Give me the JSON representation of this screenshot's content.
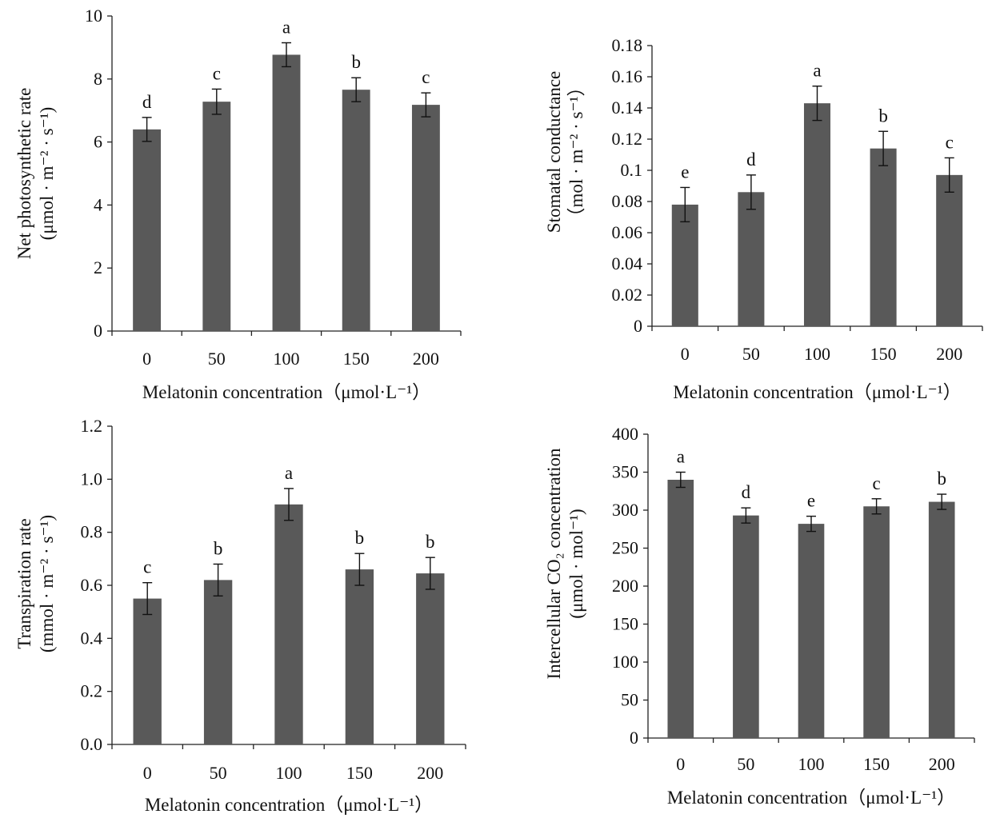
{
  "colors": {
    "bar": "#595959",
    "axis": "#222222",
    "text": "#111111"
  },
  "chart_data": [
    {
      "type": "bar",
      "categories": [
        "0",
        "50",
        "100",
        "150",
        "200"
      ],
      "values": [
        6.4,
        7.28,
        8.77,
        7.66,
        7.18
      ],
      "errors": [
        0.38,
        0.4,
        0.38,
        0.38,
        0.38
      ],
      "significance": [
        "d",
        "c",
        "a",
        "b",
        "c"
      ],
      "title": "",
      "xlabel": "Melatonin concentration（μmol·L⁻¹）",
      "ylabel_line1": "Net photosynthetic rate",
      "ylabel_line2": "(μmol · m⁻² · s⁻¹)",
      "ylim": [
        0,
        10
      ],
      "yticks": [
        "0",
        "2",
        "4",
        "6",
        "8",
        "10"
      ],
      "grid": false
    },
    {
      "type": "bar",
      "categories": [
        "0",
        "50",
        "100",
        "150",
        "200"
      ],
      "values": [
        0.078,
        0.086,
        0.143,
        0.114,
        0.097
      ],
      "errors": [
        0.011,
        0.011,
        0.011,
        0.011,
        0.011
      ],
      "significance": [
        "e",
        "d",
        "a",
        "b",
        "c"
      ],
      "title": "",
      "xlabel": "Melatonin concentration（μmol·L⁻¹）",
      "ylabel_line1": "Stomatal conductance",
      "ylabel_line2": "（mol · m⁻² · s⁻¹）",
      "ylim": [
        0,
        0.18
      ],
      "yticks": [
        "0",
        "0.02",
        "0.04",
        "0.06",
        "0.08",
        "0.1",
        "0.12",
        "0.14",
        "0.16",
        "0.18"
      ],
      "grid": false
    },
    {
      "type": "bar",
      "categories": [
        "0",
        "50",
        "100",
        "150",
        "200"
      ],
      "values": [
        0.55,
        0.62,
        0.905,
        0.66,
        0.645
      ],
      "errors": [
        0.06,
        0.06,
        0.06,
        0.06,
        0.06
      ],
      "significance": [
        "c",
        "b",
        "a",
        "b",
        "b"
      ],
      "title": "",
      "xlabel": "Melatonin concentration（μmol·L⁻¹）",
      "ylabel_line1": "Transpiration rate",
      "ylabel_line2": "(mmol · m⁻² · s⁻¹)",
      "ylim": [
        0,
        1.2
      ],
      "yticks": [
        "0.0",
        "0.2",
        "0.4",
        "0.6",
        "0.8",
        "1.0",
        "1.2"
      ],
      "grid": false
    },
    {
      "type": "bar",
      "categories": [
        "0",
        "50",
        "100",
        "150",
        "200"
      ],
      "values": [
        340,
        293,
        282,
        305,
        311
      ],
      "errors": [
        10,
        10,
        10,
        10,
        10
      ],
      "significance": [
        "a",
        "d",
        "e",
        "c",
        "b"
      ],
      "title": "",
      "xlabel": "Melatonin concentration（μmol·L⁻¹）",
      "ylabel_line1": "Intercellular CO₂ concentration",
      "ylabel_line2": "(μmol · mol⁻¹)",
      "ylim": [
        0,
        400
      ],
      "yticks": [
        "0",
        "50",
        "100",
        "150",
        "200",
        "250",
        "300",
        "350",
        "400"
      ],
      "grid": false
    }
  ]
}
